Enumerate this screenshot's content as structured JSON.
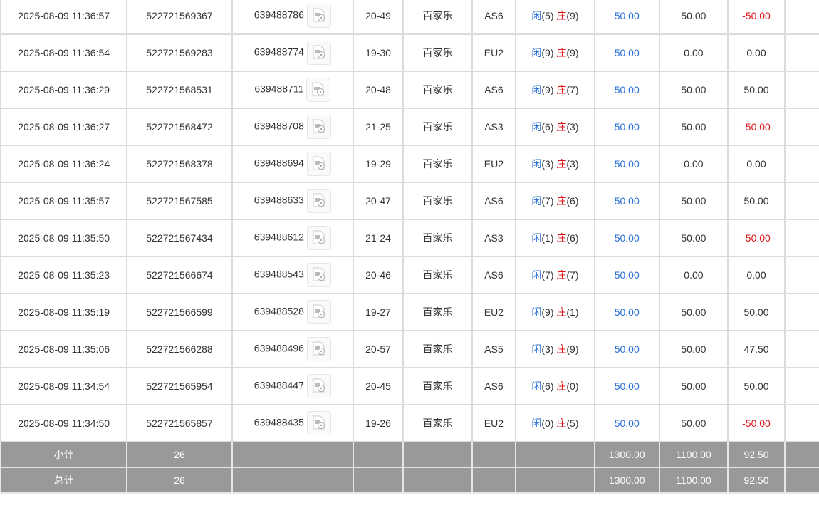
{
  "rows": [
    [
      "2025-08-09 11:36:57",
      "522721569367",
      "639488786",
      "20-49",
      "百家乐",
      "AS6",
      "5",
      "9",
      "50.00",
      "50.00",
      "-50.00"
    ],
    [
      "2025-08-09 11:36:54",
      "522721569283",
      "639488774",
      "19-30",
      "百家乐",
      "EU2",
      "9",
      "9",
      "50.00",
      "0.00",
      "0.00"
    ],
    [
      "2025-08-09 11:36:29",
      "522721568531",
      "639488711",
      "20-48",
      "百家乐",
      "AS6",
      "9",
      "7",
      "50.00",
      "50.00",
      "50.00"
    ],
    [
      "2025-08-09 11:36:27",
      "522721568472",
      "639488708",
      "21-25",
      "百家乐",
      "AS3",
      "6",
      "3",
      "50.00",
      "50.00",
      "-50.00"
    ],
    [
      "2025-08-09 11:36:24",
      "522721568378",
      "639488694",
      "19-29",
      "百家乐",
      "EU2",
      "3",
      "3",
      "50.00",
      "0.00",
      "0.00"
    ],
    [
      "2025-08-09 11:35:57",
      "522721567585",
      "639488633",
      "20-47",
      "百家乐",
      "AS6",
      "7",
      "6",
      "50.00",
      "50.00",
      "50.00"
    ],
    [
      "2025-08-09 11:35:50",
      "522721567434",
      "639488612",
      "21-24",
      "百家乐",
      "AS3",
      "1",
      "6",
      "50.00",
      "50.00",
      "-50.00"
    ],
    [
      "2025-08-09 11:35:23",
      "522721566674",
      "639488543",
      "20-46",
      "百家乐",
      "AS6",
      "7",
      "7",
      "50.00",
      "0.00",
      "0.00"
    ],
    [
      "2025-08-09 11:35:19",
      "522721566599",
      "639488528",
      "19-27",
      "百家乐",
      "EU2",
      "9",
      "1",
      "50.00",
      "50.00",
      "50.00"
    ],
    [
      "2025-08-09 11:35:06",
      "522721566288",
      "639488496",
      "20-57",
      "百家乐",
      "AS5",
      "3",
      "9",
      "50.00",
      "50.00",
      "47.50"
    ],
    [
      "2025-08-09 11:34:54",
      "522721565954",
      "639488447",
      "20-45",
      "百家乐",
      "AS6",
      "6",
      "0",
      "50.00",
      "50.00",
      "50.00"
    ],
    [
      "2025-08-09 11:34:50",
      "522721565857",
      "639488435",
      "19-26",
      "百家乐",
      "EU2",
      "0",
      "5",
      "50.00",
      "50.00",
      "-50.00"
    ]
  ],
  "player_label": "闲",
  "banker_label": "庄",
  "footer": [
    {
      "label": "小计",
      "count": "26",
      "bet": "1300.00",
      "valid": "1100.00",
      "result": "92.50"
    },
    {
      "label": "总计",
      "count": "26",
      "bet": "1300.00",
      "valid": "1100.00",
      "result": "92.50"
    }
  ],
  "colors": {
    "blue": "#2a6fd6",
    "red": "#e0151b",
    "footer_bg": "#999999"
  },
  "icons": {
    "replay": "video-replay-icon"
  }
}
